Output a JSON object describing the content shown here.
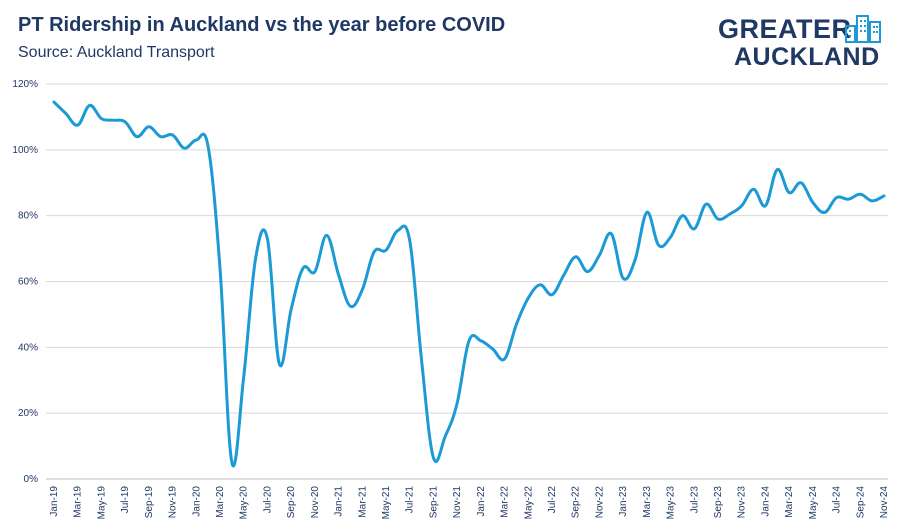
{
  "header": {
    "title": "PT Ridership in Auckland vs the year before COVID",
    "subtitle": "Source: Auckland Transport"
  },
  "logo": {
    "line1": "GREATER",
    "line2": "AUCKLAND",
    "icon": "city-buildings-icon"
  },
  "colors": {
    "line": "#1b9ad6",
    "text": "#1f3864",
    "grid": "#d9d9d9"
  },
  "chart_data": {
    "type": "line",
    "ylim": [
      0,
      1.2
    ],
    "yticks": [
      "0%",
      "20%",
      "40%",
      "60%",
      "80%",
      "100%",
      "120%"
    ],
    "ytick_values": [
      0,
      0.2,
      0.4,
      0.6,
      0.8,
      1.0,
      1.2
    ],
    "grid": true,
    "xtick_labels": [
      "Jan-19",
      "Mar-19",
      "May-19",
      "Jul-19",
      "Sep-19",
      "Nov-19",
      "Jan-20",
      "Mar-20",
      "May-20",
      "Jul-20",
      "Sep-20",
      "Nov-20",
      "Jan-21",
      "Mar-21",
      "May-21",
      "Jul-21",
      "Sep-21",
      "Nov-21",
      "Jan-22",
      "Mar-22",
      "May-22",
      "Jul-22",
      "Sep-22",
      "Nov-22",
      "Jan-23",
      "Mar-23",
      "May-23",
      "Jul-23",
      "Sep-23",
      "Nov-23",
      "Jan-24",
      "Mar-24",
      "May-24",
      "Jul-24",
      "Sep-24",
      "Nov-24"
    ],
    "series": [
      {
        "x": [
          "Jan-19",
          "Feb-19",
          "Mar-19",
          "Apr-19",
          "May-19",
          "Jun-19",
          "Jul-19",
          "Aug-19",
          "Sep-19",
          "Oct-19",
          "Nov-19",
          "Dec-19",
          "Jan-20",
          "Feb-20",
          "Mar-20",
          "Apr-20",
          "May-20",
          "Jun-20",
          "Jul-20",
          "Aug-20",
          "Sep-20",
          "Oct-20",
          "Nov-20",
          "Dec-20",
          "Jan-21",
          "Feb-21",
          "Mar-21",
          "Apr-21",
          "May-21",
          "Jun-21",
          "Jul-21",
          "Aug-21",
          "Sep-21",
          "Oct-21",
          "Nov-21",
          "Dec-21",
          "Jan-22",
          "Feb-22",
          "Mar-22",
          "Apr-22",
          "May-22",
          "Jun-22",
          "Jul-22",
          "Aug-22",
          "Sep-22",
          "Oct-22",
          "Nov-22",
          "Dec-22",
          "Jan-23",
          "Feb-23",
          "Mar-23",
          "Apr-23",
          "May-23",
          "Jun-23",
          "Jul-23",
          "Aug-23",
          "Sep-23",
          "Oct-23",
          "Nov-23",
          "Dec-23",
          "Jan-24",
          "Feb-24",
          "Mar-24",
          "Apr-24",
          "May-24",
          "Jun-24",
          "Jul-24",
          "Aug-24",
          "Sep-24",
          "Oct-24",
          "Nov-24"
        ],
        "values": [
          1.145,
          1.11,
          1.075,
          1.135,
          1.095,
          1.09,
          1.085,
          1.04,
          1.07,
          1.04,
          1.045,
          1.005,
          1.03,
          1.01,
          0.64,
          0.05,
          0.31,
          0.67,
          0.73,
          0.35,
          0.515,
          0.64,
          0.63,
          0.74,
          0.62,
          0.525,
          0.575,
          0.69,
          0.695,
          0.755,
          0.725,
          0.36,
          0.065,
          0.13,
          0.23,
          0.42,
          0.42,
          0.395,
          0.365,
          0.47,
          0.55,
          0.59,
          0.56,
          0.62,
          0.675,
          0.63,
          0.68,
          0.745,
          0.61,
          0.665,
          0.81,
          0.71,
          0.735,
          0.8,
          0.76,
          0.835,
          0.79,
          0.805,
          0.83,
          0.88,
          0.83,
          0.94,
          0.87,
          0.9,
          0.84,
          0.81,
          0.855,
          0.85,
          0.865,
          0.845,
          0.86
        ]
      }
    ]
  }
}
